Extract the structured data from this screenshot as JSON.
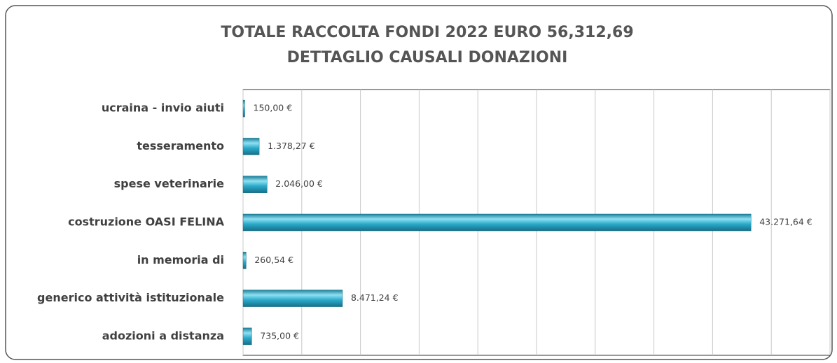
{
  "chart_data": {
    "type": "barh",
    "title": [
      "TOTALE RACCOLTA FONDI 2022 EURO 56,312,69",
      "DETTAGLIO CAUSALI DONAZIONI"
    ],
    "categories": [
      "ucraina - invio aiuti",
      "tesseramento",
      "spese veterinarie",
      "costruzione OASI FELINA",
      "in  memoria di",
      "generico attività istituzionale",
      "adozioni a distanza"
    ],
    "values": [
      150,
      1378.27,
      2046,
      43271.64,
      260.54,
      8471.24,
      735
    ],
    "value_labels": [
      "150,00 €",
      "1.378,27 €",
      "2.046,00 €",
      "43.271,64 €",
      "260,54 €",
      "8.471,24 €",
      "735,00 €"
    ],
    "color": "#2aa9c9",
    "xlim": [
      0,
      50000
    ],
    "xticks": [
      0,
      5000,
      10000,
      15000,
      20000,
      25000,
      30000,
      35000,
      40000,
      45000,
      50000
    ],
    "grid": true
  }
}
